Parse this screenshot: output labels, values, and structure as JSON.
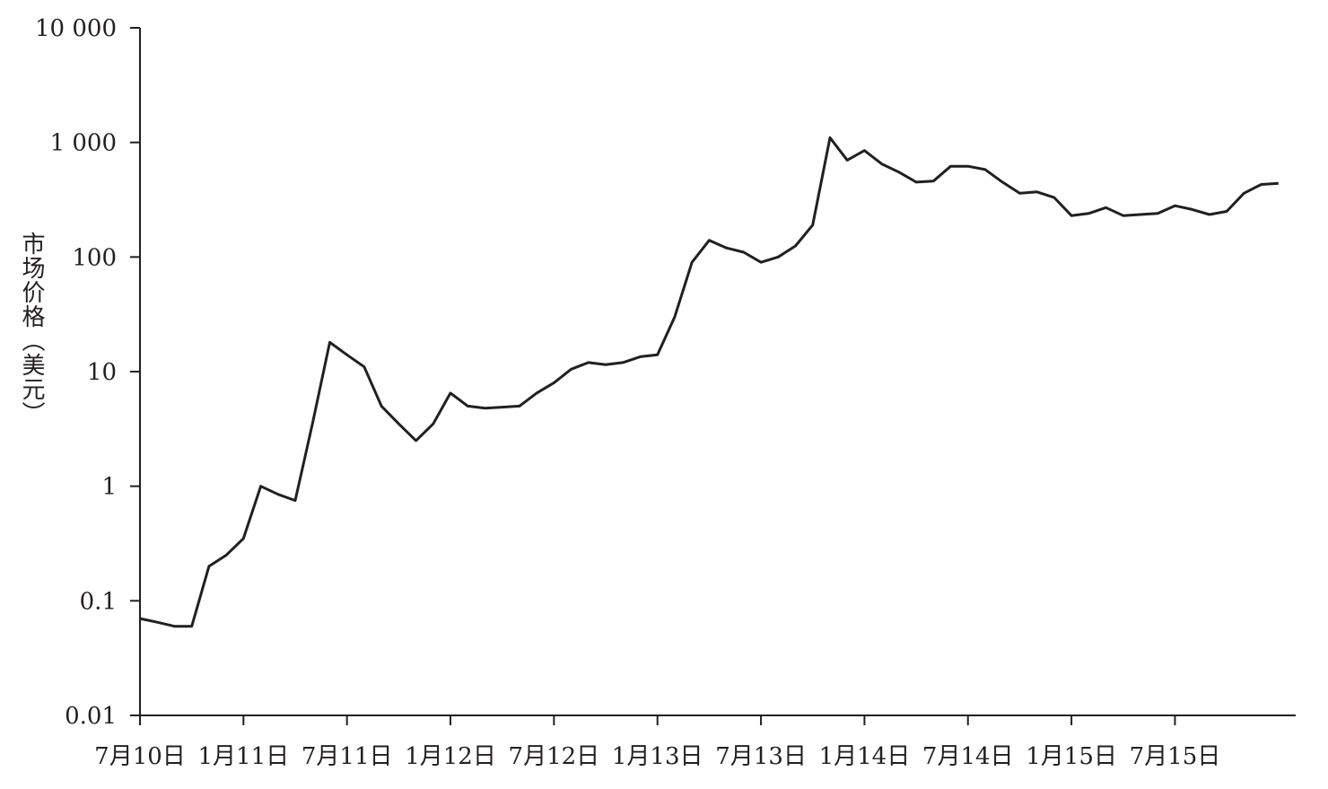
{
  "chart_data": {
    "type": "line",
    "title": "",
    "xlabel": "",
    "ylabel": "市场价格（美元）",
    "yscale": "log",
    "ylim": [
      0.01,
      10000
    ],
    "yticks": [
      {
        "value": 10000,
        "label": "10 000"
      },
      {
        "value": 1000,
        "label": "1 000"
      },
      {
        "value": 100,
        "label": "100"
      },
      {
        "value": 10,
        "label": "10"
      },
      {
        "value": 1,
        "label": "1"
      },
      {
        "value": 0.1,
        "label": "0.1"
      },
      {
        "value": 0.01,
        "label": "0.01"
      }
    ],
    "xlim": [
      "2010-07",
      "2016-02"
    ],
    "xticks": [
      {
        "value": "2010-07",
        "label": "7月10日"
      },
      {
        "value": "2011-01",
        "label": "1月11日"
      },
      {
        "value": "2011-07",
        "label": "7月11日"
      },
      {
        "value": "2012-01",
        "label": "1月12日"
      },
      {
        "value": "2012-07",
        "label": "7月12日"
      },
      {
        "value": "2013-01",
        "label": "1月13日"
      },
      {
        "value": "2013-07",
        "label": "7月13日"
      },
      {
        "value": "2014-01",
        "label": "1月14日"
      },
      {
        "value": "2014-07",
        "label": "7月14日"
      },
      {
        "value": "2015-01",
        "label": "1月15日"
      },
      {
        "value": "2015-07",
        "label": "7月15日"
      }
    ],
    "grid": false,
    "series": [
      {
        "color": "#231f20",
        "points": [
          [
            "2010-07",
            0.07
          ],
          [
            "2010-08",
            0.065
          ],
          [
            "2010-09",
            0.06
          ],
          [
            "2010-10",
            0.06
          ],
          [
            "2010-11",
            0.2
          ],
          [
            "2010-12",
            0.25
          ],
          [
            "2011-01",
            0.35
          ],
          [
            "2011-02",
            1.0
          ],
          [
            "2011-03",
            0.85
          ],
          [
            "2011-04",
            0.75
          ],
          [
            "2011-05",
            3.5
          ],
          [
            "2011-06",
            18.0
          ],
          [
            "2011-07",
            14.0
          ],
          [
            "2011-08",
            11.0
          ],
          [
            "2011-09",
            5.0
          ],
          [
            "2011-10",
            3.5
          ],
          [
            "2011-11",
            2.5
          ],
          [
            "2011-12",
            3.5
          ],
          [
            "2012-01",
            6.5
          ],
          [
            "2012-02",
            5.0
          ],
          [
            "2012-03",
            4.8
          ],
          [
            "2012-04",
            4.9
          ],
          [
            "2012-05",
            5.0
          ],
          [
            "2012-06",
            6.5
          ],
          [
            "2012-07",
            8.0
          ],
          [
            "2012-08",
            10.5
          ],
          [
            "2012-09",
            12.0
          ],
          [
            "2012-10",
            11.5
          ],
          [
            "2012-11",
            12.0
          ],
          [
            "2012-12",
            13.5
          ],
          [
            "2013-01",
            14.0
          ],
          [
            "2013-02",
            30.0
          ],
          [
            "2013-03",
            90.0
          ],
          [
            "2013-04",
            140.0
          ],
          [
            "2013-05",
            120.0
          ],
          [
            "2013-06",
            110.0
          ],
          [
            "2013-07",
            90.0
          ],
          [
            "2013-08",
            100.0
          ],
          [
            "2013-09",
            125.0
          ],
          [
            "2013-10",
            190.0
          ],
          [
            "2013-11",
            1100.0
          ],
          [
            "2013-12",
            700.0
          ],
          [
            "2014-01",
            850.0
          ],
          [
            "2014-02",
            650.0
          ],
          [
            "2014-03",
            550.0
          ],
          [
            "2014-04",
            450.0
          ],
          [
            "2014-05",
            460.0
          ],
          [
            "2014-06",
            620.0
          ],
          [
            "2014-07",
            620.0
          ],
          [
            "2014-08",
            580.0
          ],
          [
            "2014-09",
            450.0
          ],
          [
            "2014-10",
            360.0
          ],
          [
            "2014-11",
            370.0
          ],
          [
            "2014-12",
            330.0
          ],
          [
            "2015-01",
            230.0
          ],
          [
            "2015-02",
            240.0
          ],
          [
            "2015-03",
            270.0
          ],
          [
            "2015-04",
            230.0
          ],
          [
            "2015-05",
            235.0
          ],
          [
            "2015-06",
            240.0
          ],
          [
            "2015-07",
            280.0
          ],
          [
            "2015-08",
            260.0
          ],
          [
            "2015-09",
            235.0
          ],
          [
            "2015-10",
            250.0
          ],
          [
            "2015-11",
            360.0
          ],
          [
            "2015-12",
            430.0
          ],
          [
            "2016-01",
            440.0
          ]
        ]
      }
    ]
  }
}
